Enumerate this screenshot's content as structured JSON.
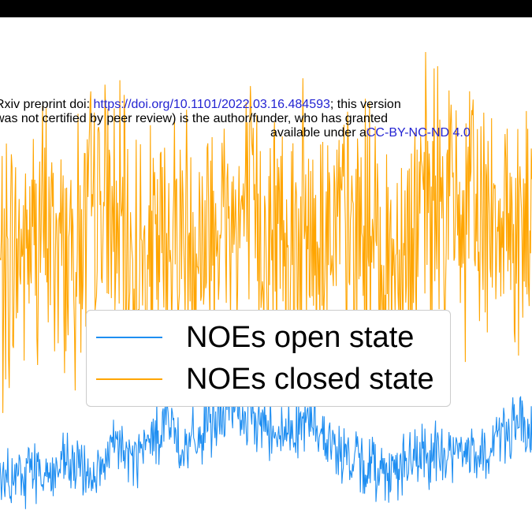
{
  "banner": {
    "line1_prefix": "Rxiv preprint doi: ",
    "line1_link": "https://doi.org/10.1101/2022.03.16.484593",
    "line1_suffix": "; this version",
    "line2": " was not certified by peer review) is the author/funder, who has granted",
    "line3_prefix": "available under a",
    "line3_link": "CC-BY-NC-ND 4.0"
  },
  "colors": {
    "open": "#1f8ef1",
    "closed": "#ffa500",
    "link": "#2323d2"
  },
  "chart_data": {
    "type": "line",
    "grid": false,
    "legend_position": "center",
    "series": [
      {
        "name": "NOEs closed state",
        "color": "#ffa500",
        "values": [
          0.48,
          0.52,
          0.55,
          0.57,
          0.52,
          0.55,
          0.61,
          0.56,
          0.51,
          0.5,
          0.54,
          0.58,
          0.54,
          0.6,
          0.58,
          0.6,
          0.54,
          0.58,
          0.56,
          0.56,
          0.58,
          0.55,
          0.56,
          0.52,
          0.52,
          0.59,
          0.61,
          0.62,
          0.58,
          0.6,
          0.62,
          0.57,
          0.55
        ]
      },
      {
        "name": "NOEs open state",
        "color": "#1f8ef1",
        "values": [
          0.08,
          0.09,
          0.12,
          0.1,
          0.12,
          0.11,
          0.1,
          0.16,
          0.13,
          0.16,
          0.21,
          0.15,
          0.17,
          0.21,
          0.23,
          0.21,
          0.2,
          0.18,
          0.2,
          0.2,
          0.16,
          0.13,
          0.12,
          0.11,
          0.12,
          0.13,
          0.14,
          0.14,
          0.15,
          0.13,
          0.18,
          0.2,
          0.17
        ]
      }
    ]
  }
}
